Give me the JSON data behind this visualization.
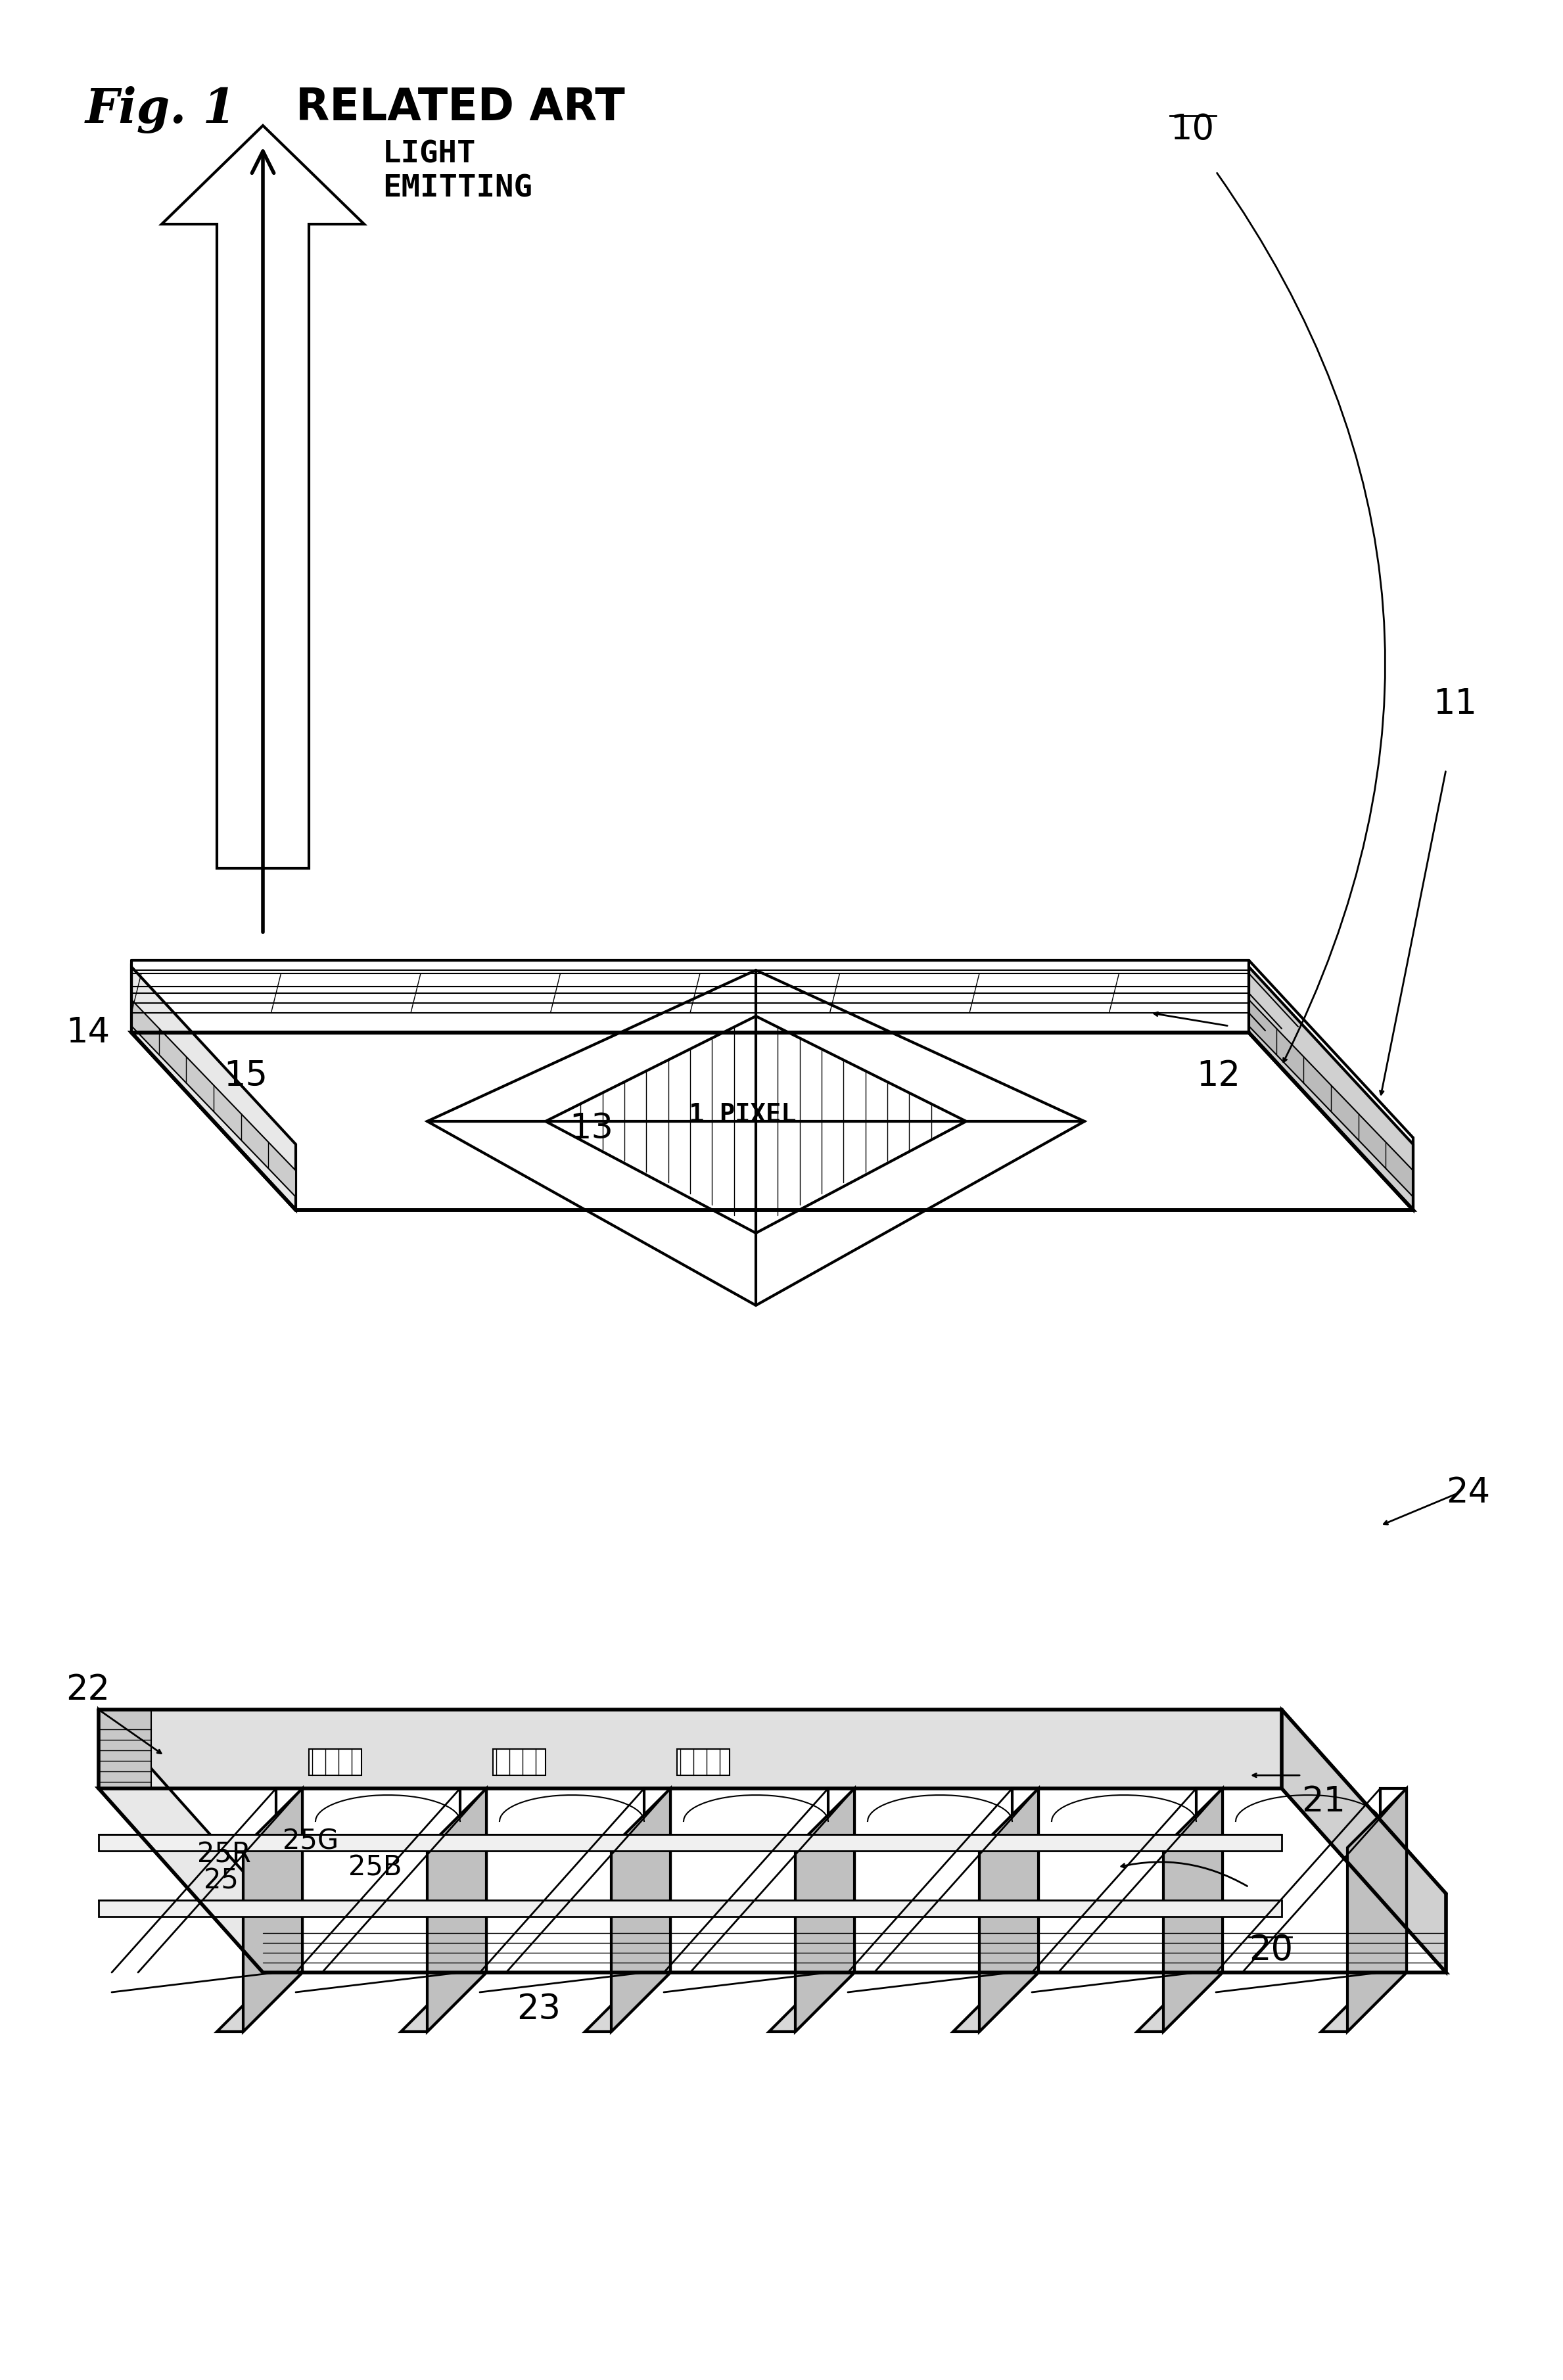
{
  "title": "Fig. 1  RELATED ART",
  "fig_label": "Fig. 1",
  "fig_subtitle": "RELATED ART",
  "background_color": "#ffffff",
  "line_color": "#000000",
  "labels": {
    "light_emitting": "LIGHT\nEMITTING",
    "pixel": "1 PIXEL",
    "ref_10": "10",
    "ref_11": "11",
    "ref_12": "12",
    "ref_13": "13",
    "ref_14": "14",
    "ref_15": "15",
    "ref_20": "20",
    "ref_21": "21",
    "ref_22": "22",
    "ref_23": "23",
    "ref_24": "24",
    "ref_25": "25",
    "ref_25R": "25R",
    "ref_25G": "25G",
    "ref_25B": "25B"
  }
}
